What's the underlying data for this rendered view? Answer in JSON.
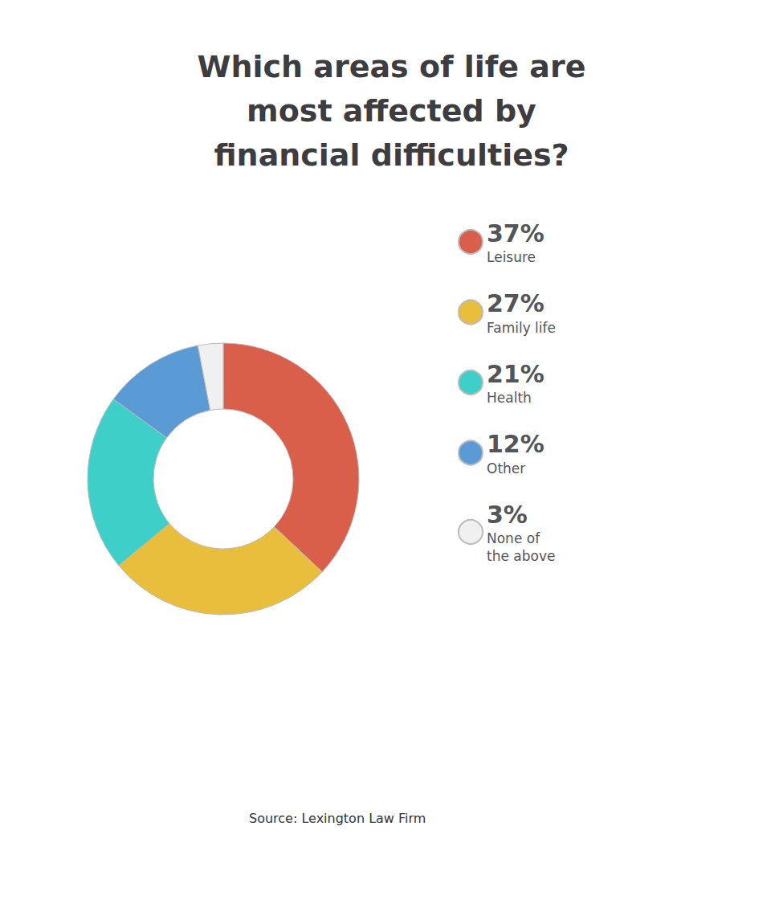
{
  "chart_data": {
    "type": "pie",
    "title": "Which areas of life are\nmost affected by\nfinancial difficulties?",
    "categories": [
      "Leisure",
      "Family life",
      "Health",
      "Other",
      "None of\nthe above"
    ],
    "values": [
      37,
      27,
      21,
      12,
      3
    ],
    "value_labels": [
      "37%",
      "27%",
      "21%",
      "12%",
      "3%"
    ],
    "colors": [
      "#d95f4b",
      "#e8be3c",
      "#3ecfc9",
      "#5b9bd5",
      "#f0f0f0"
    ],
    "legend": "right",
    "data_labels": false,
    "annotations": [
      "Source: Lexington Law Firm"
    ]
  }
}
